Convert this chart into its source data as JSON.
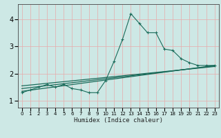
{
  "bg_color": "#cde8e5",
  "grid_color": "#e8aaaa",
  "line_color": "#1a6b5a",
  "xlabel": "Humidex (Indice chaleur)",
  "xlim": [
    -0.5,
    23.5
  ],
  "ylim": [
    0.75,
    4.55
  ],
  "yticks": [
    1,
    2,
    3,
    4
  ],
  "xticks": [
    0,
    1,
    2,
    3,
    4,
    5,
    6,
    7,
    8,
    9,
    10,
    11,
    12,
    13,
    14,
    15,
    16,
    17,
    18,
    19,
    20,
    21,
    22,
    23
  ],
  "series_main": {
    "x": [
      0,
      1,
      2,
      3,
      4,
      5,
      6,
      7,
      8,
      9,
      10,
      11,
      12,
      13,
      14,
      15,
      16,
      17,
      18,
      19,
      20,
      21,
      22,
      23
    ],
    "y": [
      1.3,
      1.4,
      1.5,
      1.6,
      1.5,
      1.6,
      1.45,
      1.4,
      1.3,
      1.3,
      1.75,
      2.45,
      3.25,
      4.2,
      3.85,
      3.5,
      3.5,
      2.9,
      2.85,
      2.55,
      2.4,
      2.3,
      2.3,
      2.3
    ]
  },
  "series_linear1": {
    "x": [
      0,
      23
    ],
    "y": [
      1.35,
      2.3
    ]
  },
  "series_linear2": {
    "x": [
      0,
      23
    ],
    "y": [
      1.45,
      2.28
    ]
  },
  "series_linear3": {
    "x": [
      0,
      23
    ],
    "y": [
      1.55,
      2.26
    ]
  }
}
